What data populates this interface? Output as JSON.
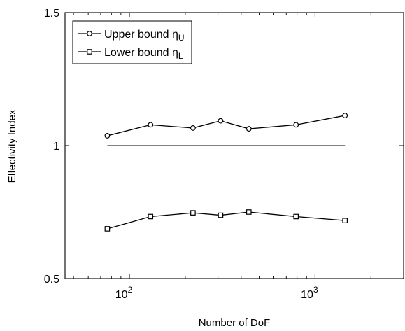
{
  "chart_data": {
    "type": "line",
    "xlabel": "Number of DoF",
    "ylabel": "Effectivity Index",
    "xscale": "log",
    "xlim": [
      45,
      3000
    ],
    "ylim": [
      0.5,
      1.5
    ],
    "grid": false,
    "legend_position": "top-left",
    "y_ticks": [
      {
        "value": 0.5,
        "label": "0.5"
      },
      {
        "value": 1,
        "label": "1"
      },
      {
        "value": 1.5,
        "label": "1.5"
      }
    ],
    "x_ticks": [
      {
        "value": 100,
        "base": "10",
        "exp": "2"
      },
      {
        "value": 1000,
        "base": "10",
        "exp": "3"
      }
    ],
    "reference_line": {
      "y": 1.0,
      "x_range": [
        76,
        1450
      ]
    },
    "series": [
      {
        "name": "Upper bound",
        "name_symbol": "η",
        "name_sub": "U",
        "marker": "circle",
        "color": "#000000",
        "x": [
          76,
          130,
          220,
          310,
          440,
          790,
          1450
        ],
        "y": [
          1.037,
          1.078,
          1.066,
          1.093,
          1.063,
          1.078,
          1.113
        ]
      },
      {
        "name": "Lower bound",
        "name_symbol": "η",
        "name_sub": "L",
        "marker": "square",
        "color": "#000000",
        "x": [
          76,
          130,
          220,
          310,
          440,
          790,
          1450
        ],
        "y": [
          0.687,
          0.733,
          0.747,
          0.738,
          0.75,
          0.733,
          0.718
        ]
      }
    ]
  }
}
